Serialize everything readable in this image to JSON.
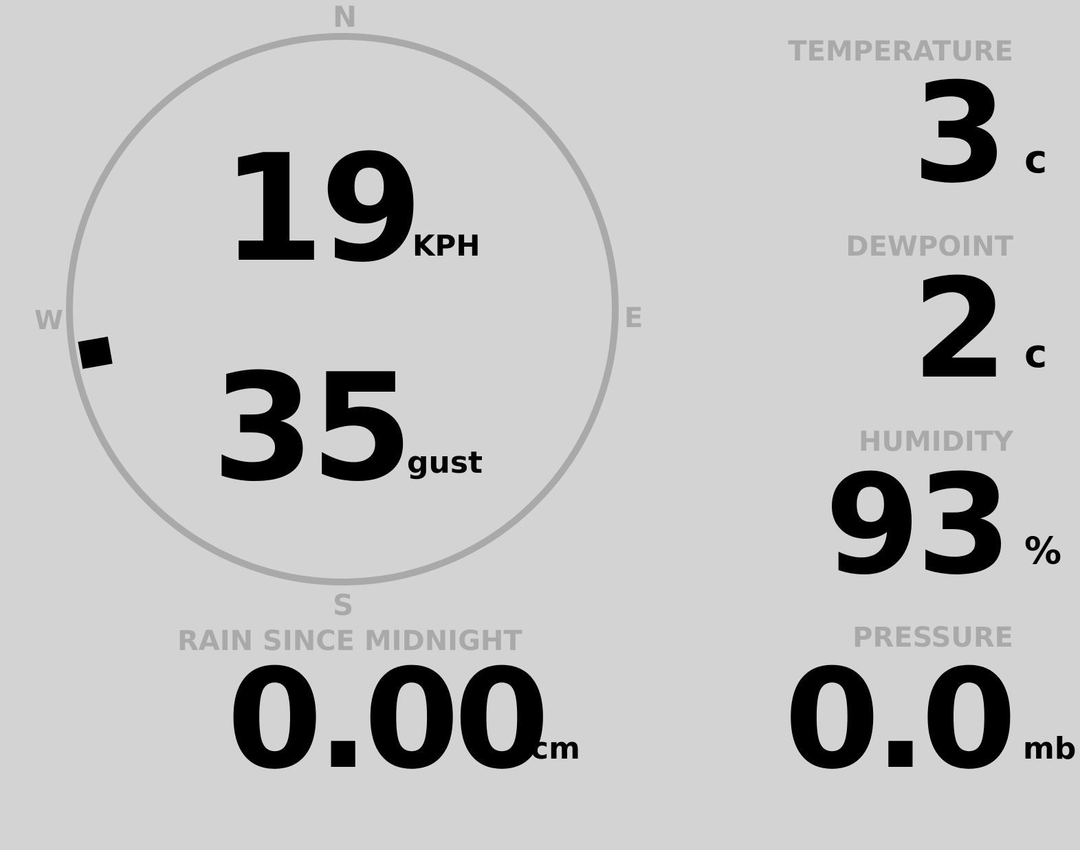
{
  "colors": {
    "background": "#d3d3d3",
    "label": "#a9a9a9",
    "value": "#000000"
  },
  "compass": {
    "north": "N",
    "south": "S",
    "east": "E",
    "west": "W",
    "wind_direction_degrees": 260
  },
  "wind": {
    "speed": "19",
    "speed_unit": "KPH",
    "gust": "35",
    "gust_unit": "gust"
  },
  "temperature": {
    "label": "TEMPERATURE",
    "value": "3",
    "unit": "c"
  },
  "dewpoint": {
    "label": "DEWPOINT",
    "value": "2",
    "unit": "c"
  },
  "humidity": {
    "label": "HUMIDITY",
    "value": "93",
    "unit": "%"
  },
  "pressure": {
    "label": "PRESSURE",
    "value": "0.0",
    "unit": "mb"
  },
  "rain": {
    "label": "RAIN SINCE MIDNIGHT",
    "value": "0.00",
    "unit": "cm"
  }
}
